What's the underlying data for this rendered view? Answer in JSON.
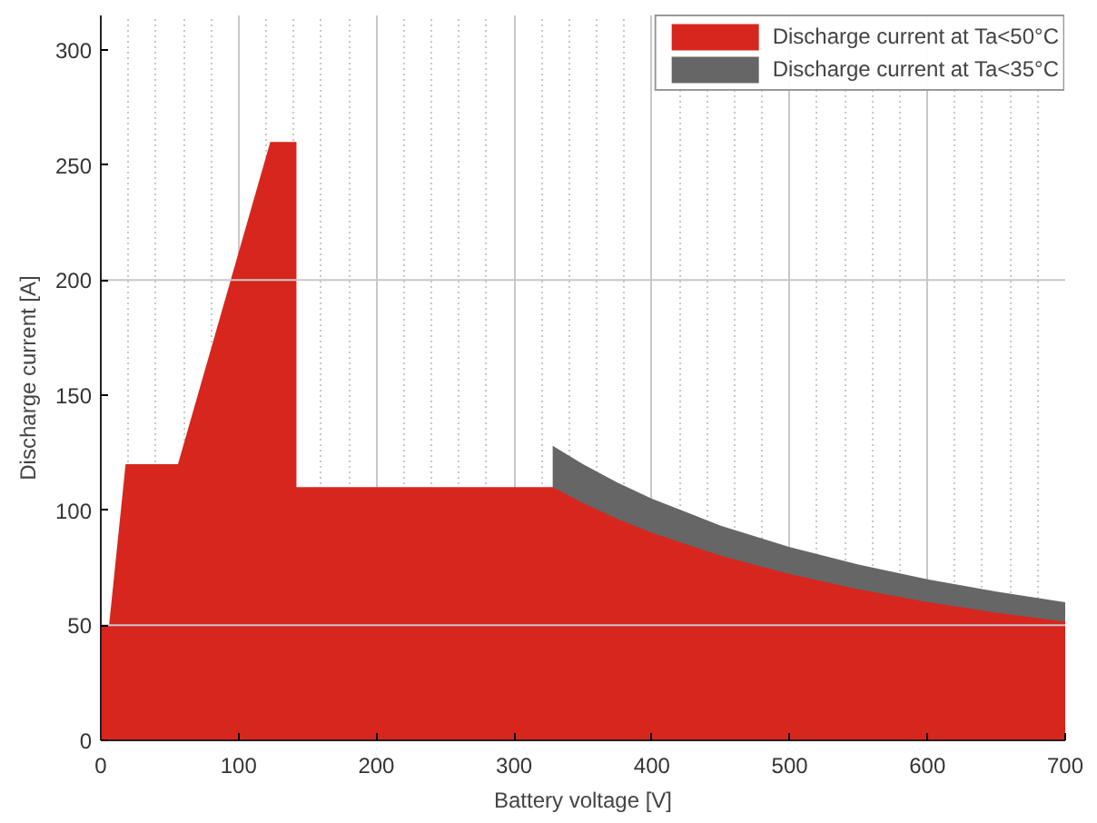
{
  "chart_data": {
    "type": "area",
    "xlabel": "Battery voltage [V]",
    "ylabel": "Discharge current [A]",
    "xlim": [
      0,
      700
    ],
    "ylim": [
      0,
      315
    ],
    "xticks": [
      0,
      100,
      200,
      300,
      400,
      500,
      600,
      700
    ],
    "yticks": [
      0,
      50,
      100,
      150,
      200,
      250,
      300
    ],
    "grid": "x",
    "legend": "top right",
    "ref_lines": [
      {
        "axis": "y",
        "value": 50,
        "color": "#c8c8c8"
      },
      {
        "axis": "y",
        "value": 200,
        "color": "#c8c8c8"
      }
    ],
    "series": [
      {
        "name": "Discharge current at Ta<35°C",
        "color": "#666666",
        "x": [
          328,
          350,
          375,
          400,
          450,
          500,
          550,
          600,
          650,
          700
        ],
        "values": [
          128,
          120,
          112,
          105,
          93.3,
          84,
          76.4,
          70,
          64.6,
          60
        ]
      },
      {
        "name": "Discharge current at Ta<50°C",
        "color": "#d7261e",
        "x": [
          0,
          6,
          18,
          56,
          123,
          142,
          142,
          328,
          350,
          375,
          400,
          450,
          500,
          550,
          600,
          650,
          700
        ],
        "values": [
          50,
          50,
          120,
          120,
          260,
          260,
          110,
          110,
          103.1,
          96.2,
          90.2,
          80.2,
          72.2,
          65.6,
          60.1,
          55.5,
          51.5
        ]
      }
    ]
  }
}
